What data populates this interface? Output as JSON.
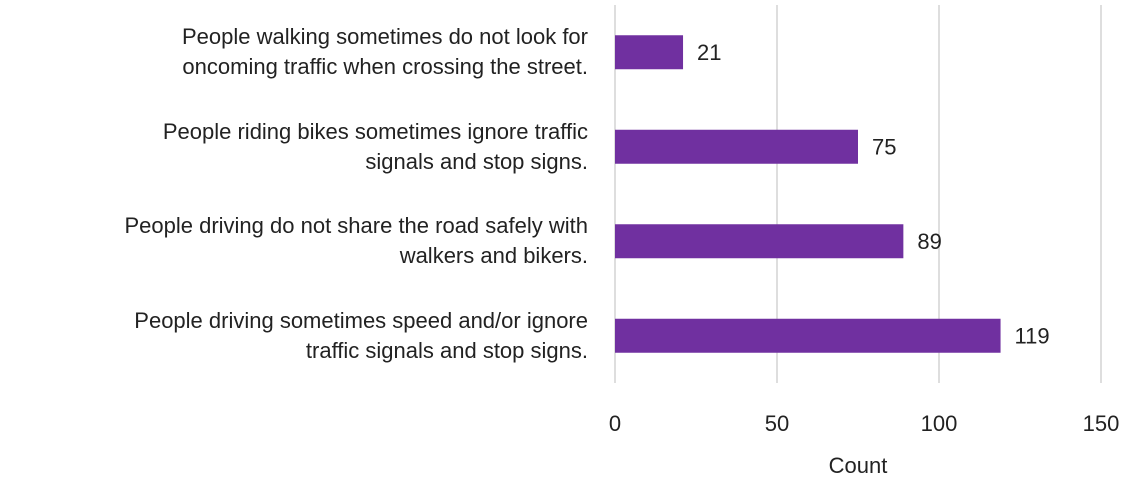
{
  "chart_data": {
    "type": "barh",
    "categories": [
      "People walking sometimes do not look for\noncoming traffic when crossing the street.",
      "People riding bikes sometimes ignore traffic\nsignals and stop signs.",
      "People driving do not share the road safely with\nwalkers and bikers.",
      "People driving sometimes speed and/or ignore\ntraffic signals and stop signs."
    ],
    "values": [
      21,
      75,
      89,
      119
    ],
    "color": "#7030a0",
    "xlabel": "Count",
    "xlim": [
      0,
      150
    ],
    "xticks": [
      0,
      50,
      100,
      150
    ],
    "grid": true
  }
}
